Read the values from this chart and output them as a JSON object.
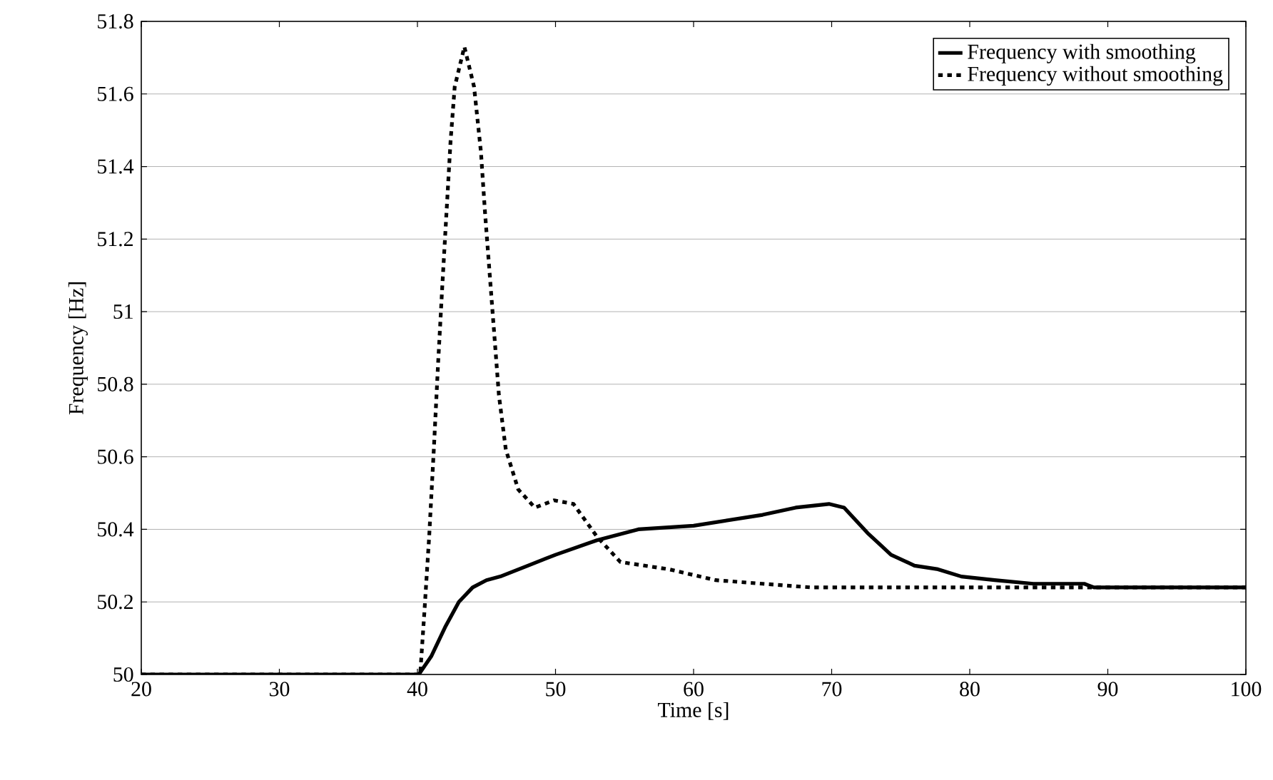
{
  "chart_data": {
    "type": "line",
    "xlabel": "Time [s]",
    "ylabel": "Frequency [Hz]",
    "xlim": [
      20,
      100
    ],
    "xticks": [
      20,
      30,
      40,
      50,
      60,
      70,
      80,
      90,
      100
    ],
    "ylim": [
      50,
      51.8
    ],
    "yticks": [
      50,
      50.2,
      50.4,
      50.6,
      50.8,
      51,
      51.2,
      51.4,
      51.6,
      51.8
    ],
    "grid": "y",
    "legend": "top right",
    "marker": "none",
    "series": [
      {
        "name": "Frequency with smoothing",
        "color": "#000000",
        "line_style": "solid",
        "x": [
          20,
          40.1,
          41,
          42,
          43,
          44,
          45,
          46,
          48,
          50,
          53,
          56,
          60,
          65,
          67.4,
          69.8,
          70.9,
          72.6,
          74.3,
          76,
          77.7,
          79.4,
          81.8,
          84.6,
          88.3,
          89,
          100
        ],
        "values": [
          50,
          50,
          50.05,
          50.13,
          50.2,
          50.24,
          50.26,
          50.27,
          50.3,
          50.33,
          50.37,
          50.4,
          50.41,
          50.44,
          50.46,
          50.47,
          50.46,
          50.39,
          50.33,
          50.3,
          50.29,
          50.27,
          50.26,
          50.25,
          50.25,
          50.24,
          50.24
        ]
      },
      {
        "name": "Frequency without smoothing",
        "color": "#000000",
        "line_style": "dotted",
        "x": [
          20,
          40.2,
          40.5,
          40.85,
          41.2,
          41.5,
          41.8,
          42.1,
          42.4,
          42.7,
          43.4,
          44.1,
          44.6,
          44.9,
          45.3,
          45.6,
          45.9,
          46.4,
          47.3,
          48.5,
          49.9,
          51.3,
          53,
          54.7,
          58.2,
          61.6,
          65,
          68.5,
          100
        ],
        "values": [
          50,
          50,
          50.17,
          50.38,
          50.63,
          50.86,
          51.07,
          51.27,
          51.47,
          51.62,
          51.73,
          51.62,
          51.44,
          51.27,
          51.07,
          50.92,
          50.77,
          50.62,
          50.51,
          50.46,
          50.48,
          50.47,
          50.38,
          50.31,
          50.29,
          50.26,
          50.25,
          50.24,
          50.24
        ]
      }
    ]
  }
}
